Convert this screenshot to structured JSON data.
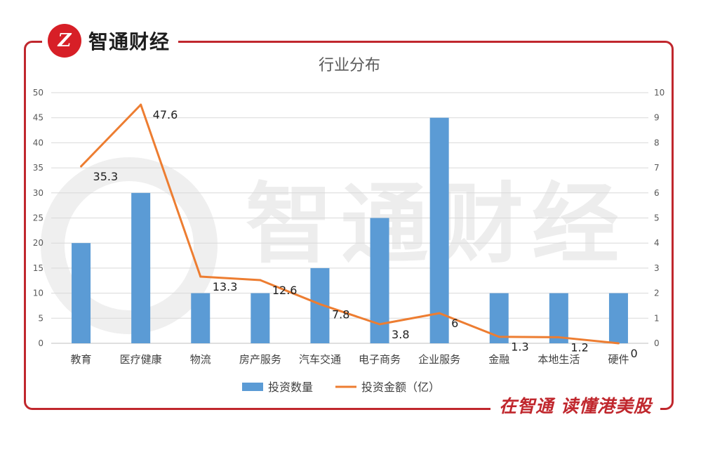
{
  "brand": {
    "name": "智通财经",
    "logo_glyph": "Z",
    "slogan": "在智通  读懂港美股",
    "accent_color": "#c0272d"
  },
  "chart_data": {
    "type": "bar+line",
    "title": "行业分布",
    "categories": [
      "教育",
      "医疗健康",
      "物流",
      "房产服务",
      "汽车交通",
      "电子商务",
      "企业服务",
      "金融",
      "本地生活",
      "硬件"
    ],
    "series": [
      {
        "name": "投资数量",
        "type": "bar",
        "axis": "left",
        "color": "#5b9bd5",
        "values": [
          20,
          30,
          10,
          10,
          15,
          25,
          45,
          10,
          10,
          10
        ]
      },
      {
        "name": "投资金额（亿）",
        "type": "line",
        "axis": "right",
        "color": "#ed7d31",
        "values": [
          7.06,
          9.52,
          2.66,
          2.52,
          1.56,
          0.76,
          1.2,
          0.26,
          0.24,
          0
        ],
        "labels": [
          "35.3",
          "47.6",
          "13.3",
          "12.6",
          "7.8",
          "3.8",
          "6",
          "1.3",
          "1.2",
          "0"
        ]
      }
    ],
    "y_left": {
      "min": 0,
      "max": 50,
      "step": 5,
      "ticks": [
        "0",
        "5",
        "10",
        "15",
        "20",
        "25",
        "30",
        "35",
        "40",
        "45",
        "50"
      ]
    },
    "y_right": {
      "min": 0,
      "max": 10,
      "step": 1,
      "ticks": [
        "0",
        "1",
        "2",
        "3",
        "4",
        "5",
        "6",
        "7",
        "8",
        "9",
        "10"
      ]
    },
    "grid": true,
    "legend_position": "bottom"
  }
}
